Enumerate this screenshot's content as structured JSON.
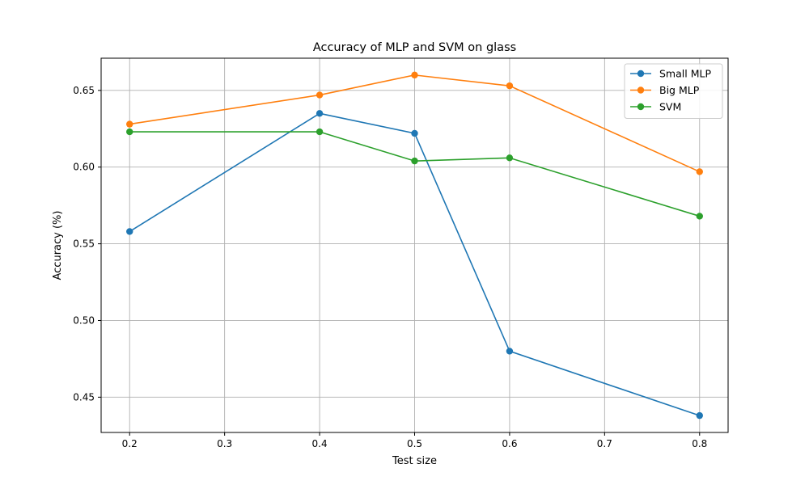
{
  "chart_data": {
    "type": "line",
    "title": "Accuracy of MLP and SVM on glass",
    "xlabel": "Test size",
    "ylabel": "Accuracy (%)",
    "x": [
      0.2,
      0.4,
      0.5,
      0.6,
      0.8
    ],
    "xlim": [
      0.17,
      0.83
    ],
    "ylim": [
      0.427,
      0.671
    ],
    "xticks": [
      0.2,
      0.3,
      0.4,
      0.5,
      0.6,
      0.7,
      0.8
    ],
    "xtick_labels": [
      "0.2",
      "0.3",
      "0.4",
      "0.5",
      "0.6",
      "0.7",
      "0.8"
    ],
    "yticks": [
      0.45,
      0.5,
      0.55,
      0.6,
      0.65
    ],
    "ytick_labels": [
      "0.45",
      "0.50",
      "0.55",
      "0.60",
      "0.65"
    ],
    "grid": true,
    "legend_position": "top-right",
    "series": [
      {
        "name": "Small MLP",
        "color": "#1f77b4",
        "values": [
          0.558,
          0.635,
          0.622,
          0.48,
          0.438
        ]
      },
      {
        "name": "Big MLP",
        "color": "#ff7f0e",
        "values": [
          0.628,
          0.647,
          0.66,
          0.653,
          0.597
        ]
      },
      {
        "name": "SVM",
        "color": "#2ca02c",
        "values": [
          0.623,
          0.623,
          0.604,
          0.606,
          0.568
        ]
      }
    ]
  }
}
